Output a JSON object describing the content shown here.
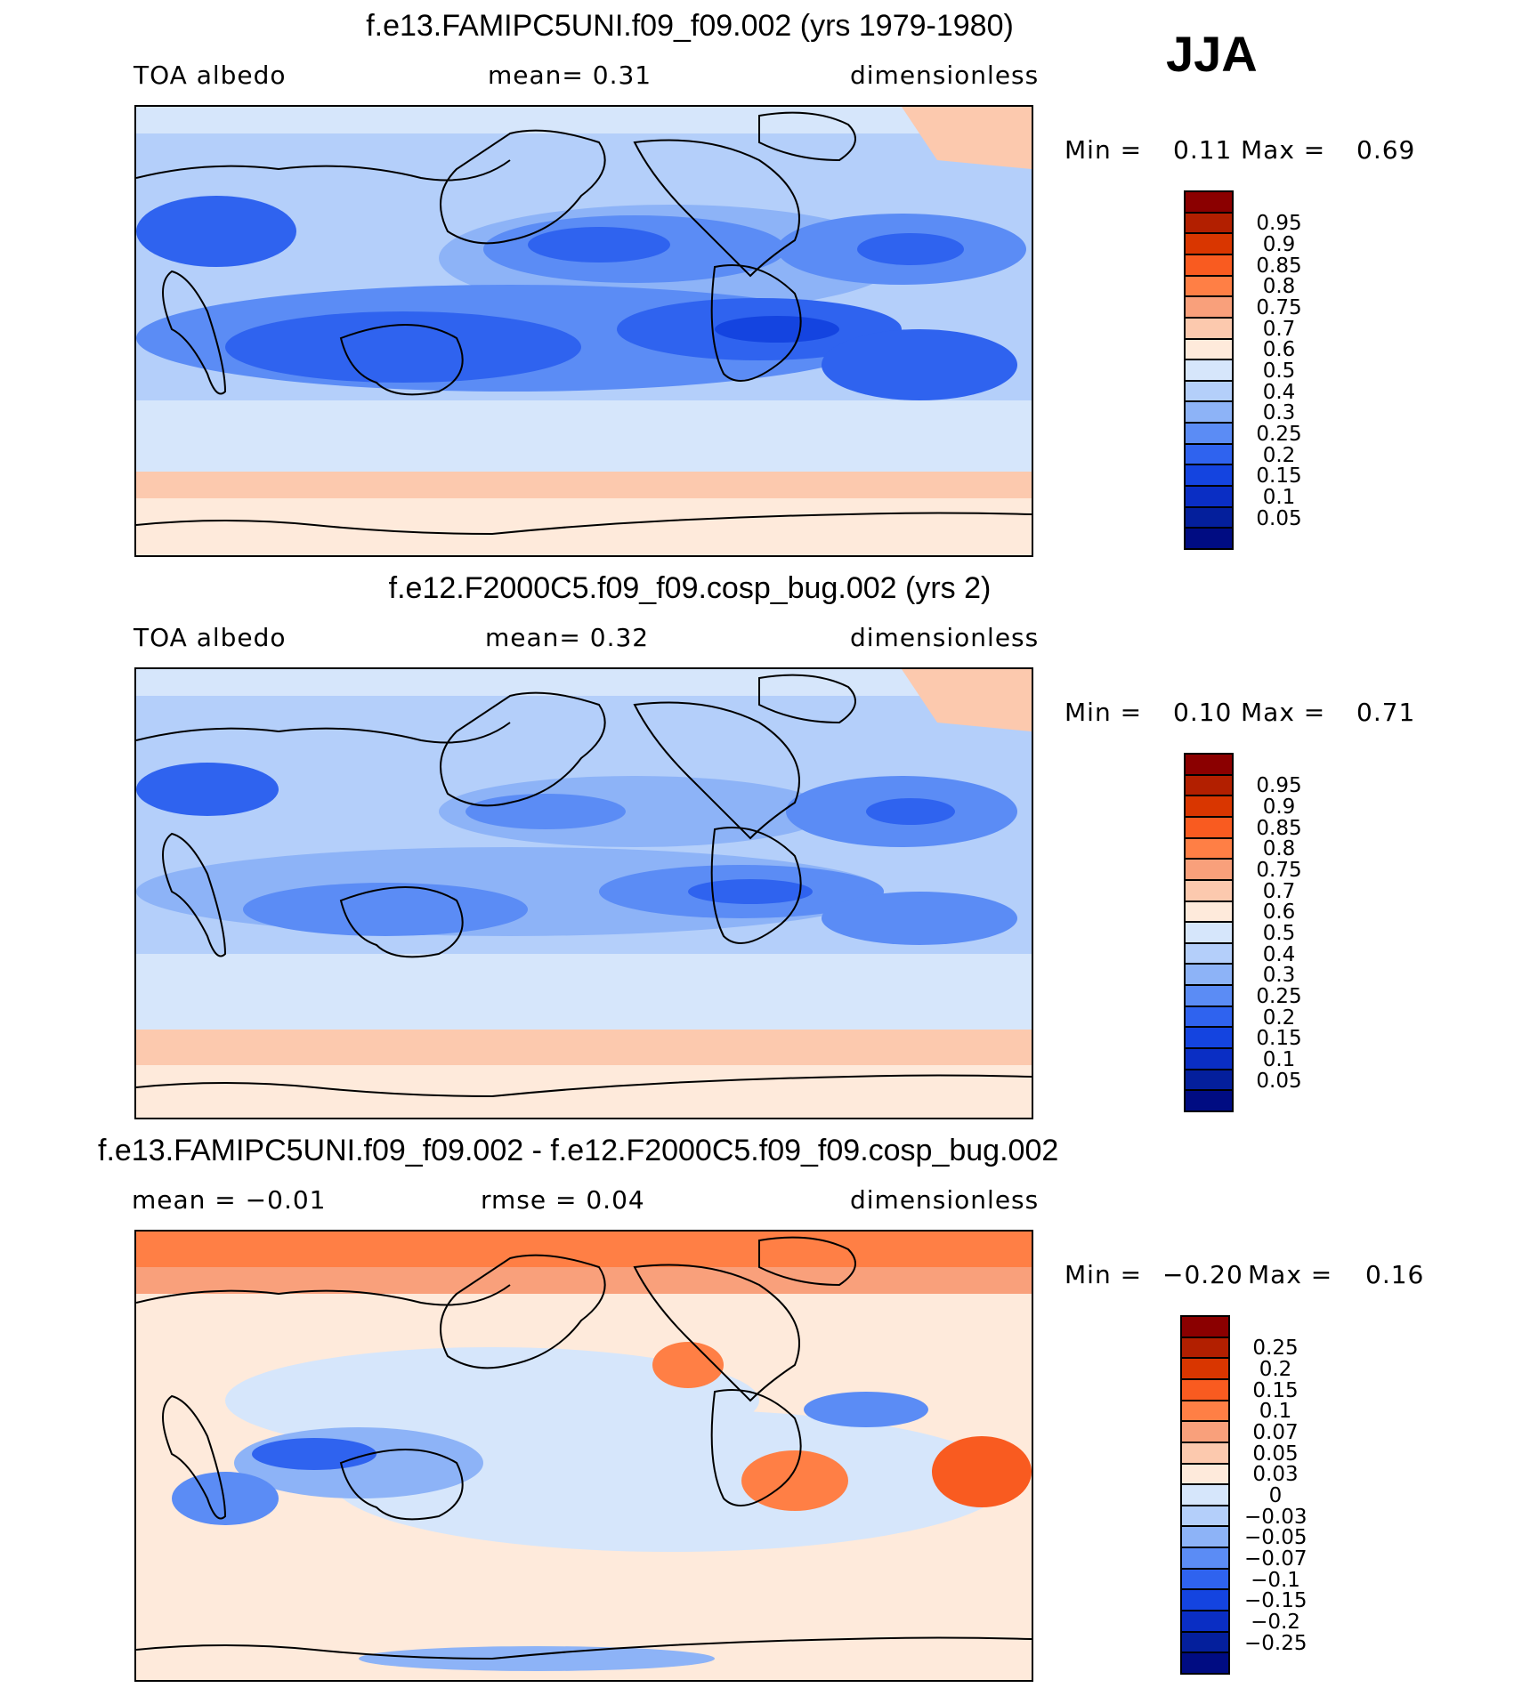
{
  "season": "JJA",
  "panels": [
    {
      "title": "f.e13.FAMIPC5UNI.f09_f09.002 (yrs 1979-1980)",
      "left_label": "TOA  albedo",
      "center_label": "mean=    0.31",
      "right_label": "dimensionless",
      "min_label": "Min  =",
      "min_value": "0.11",
      "max_label": "Max  =",
      "max_value": "0.69",
      "colorbar": {
        "colors": [
          "#8b0000",
          "#b21f00",
          "#d93600",
          "#f95b20",
          "#ff7f45",
          "#f9a07b",
          "#fcc9ae",
          "#feeadb",
          "#d6e6fb",
          "#b4cffa",
          "#8db3f7",
          "#5b8cf5",
          "#2f63ef",
          "#1444e0",
          "#0a2ec4",
          "#041f9c",
          "#000c82"
        ],
        "labels": [
          "0.95",
          "0.9",
          "0.85",
          "0.8",
          "0.75",
          "0.7",
          "0.6",
          "0.5",
          "0.4",
          "0.3",
          "0.25",
          "0.2",
          "0.15",
          "0.1",
          "0.05"
        ]
      }
    },
    {
      "title": "f.e12.F2000C5.f09_f09.cosp_bug.002 (yrs 2)",
      "left_label": "TOA  albedo",
      "center_label": "mean=    0.32",
      "right_label": "dimensionless",
      "min_label": "Min  =",
      "min_value": "0.10",
      "max_label": "Max  =",
      "max_value": "0.71",
      "colorbar": {
        "colors": [
          "#8b0000",
          "#b21f00",
          "#d93600",
          "#f95b20",
          "#ff7f45",
          "#f9a07b",
          "#fcc9ae",
          "#feeadb",
          "#d6e6fb",
          "#b4cffa",
          "#8db3f7",
          "#5b8cf5",
          "#2f63ef",
          "#1444e0",
          "#0a2ec4",
          "#041f9c",
          "#000c82"
        ],
        "labels": [
          "0.95",
          "0.9",
          "0.85",
          "0.8",
          "0.75",
          "0.7",
          "0.6",
          "0.5",
          "0.4",
          "0.3",
          "0.25",
          "0.2",
          "0.15",
          "0.1",
          "0.05"
        ]
      }
    },
    {
      "title": "f.e13.FAMIPC5UNI.f09_f09.002 - f.e12.F2000C5.f09_f09.cosp_bug.002",
      "left_label": "mean  =   −0.01",
      "center_label": "rmse  =     0.04",
      "right_label": "dimensionless",
      "min_label": "Min  =",
      "min_value": "−0.20",
      "max_label": "Max  =",
      "max_value": "0.16",
      "colorbar": {
        "colors": [
          "#8b0000",
          "#b21f00",
          "#d93600",
          "#f95b20",
          "#ff7f45",
          "#f9a07b",
          "#fcc9ae",
          "#feeadb",
          "#d6e6fb",
          "#b4cffa",
          "#8db3f7",
          "#5b8cf5",
          "#2f63ef",
          "#1444e0",
          "#0a2ec4",
          "#041f9c",
          "#000c82"
        ],
        "labels": [
          "0.25",
          "0.2",
          "0.15",
          "0.1",
          "0.07",
          "0.05",
          "0.03",
          "0",
          "−0.03",
          "−0.05",
          "−0.07",
          "−0.1",
          "−0.15",
          "−0.2",
          "−0.25"
        ]
      }
    }
  ]
}
